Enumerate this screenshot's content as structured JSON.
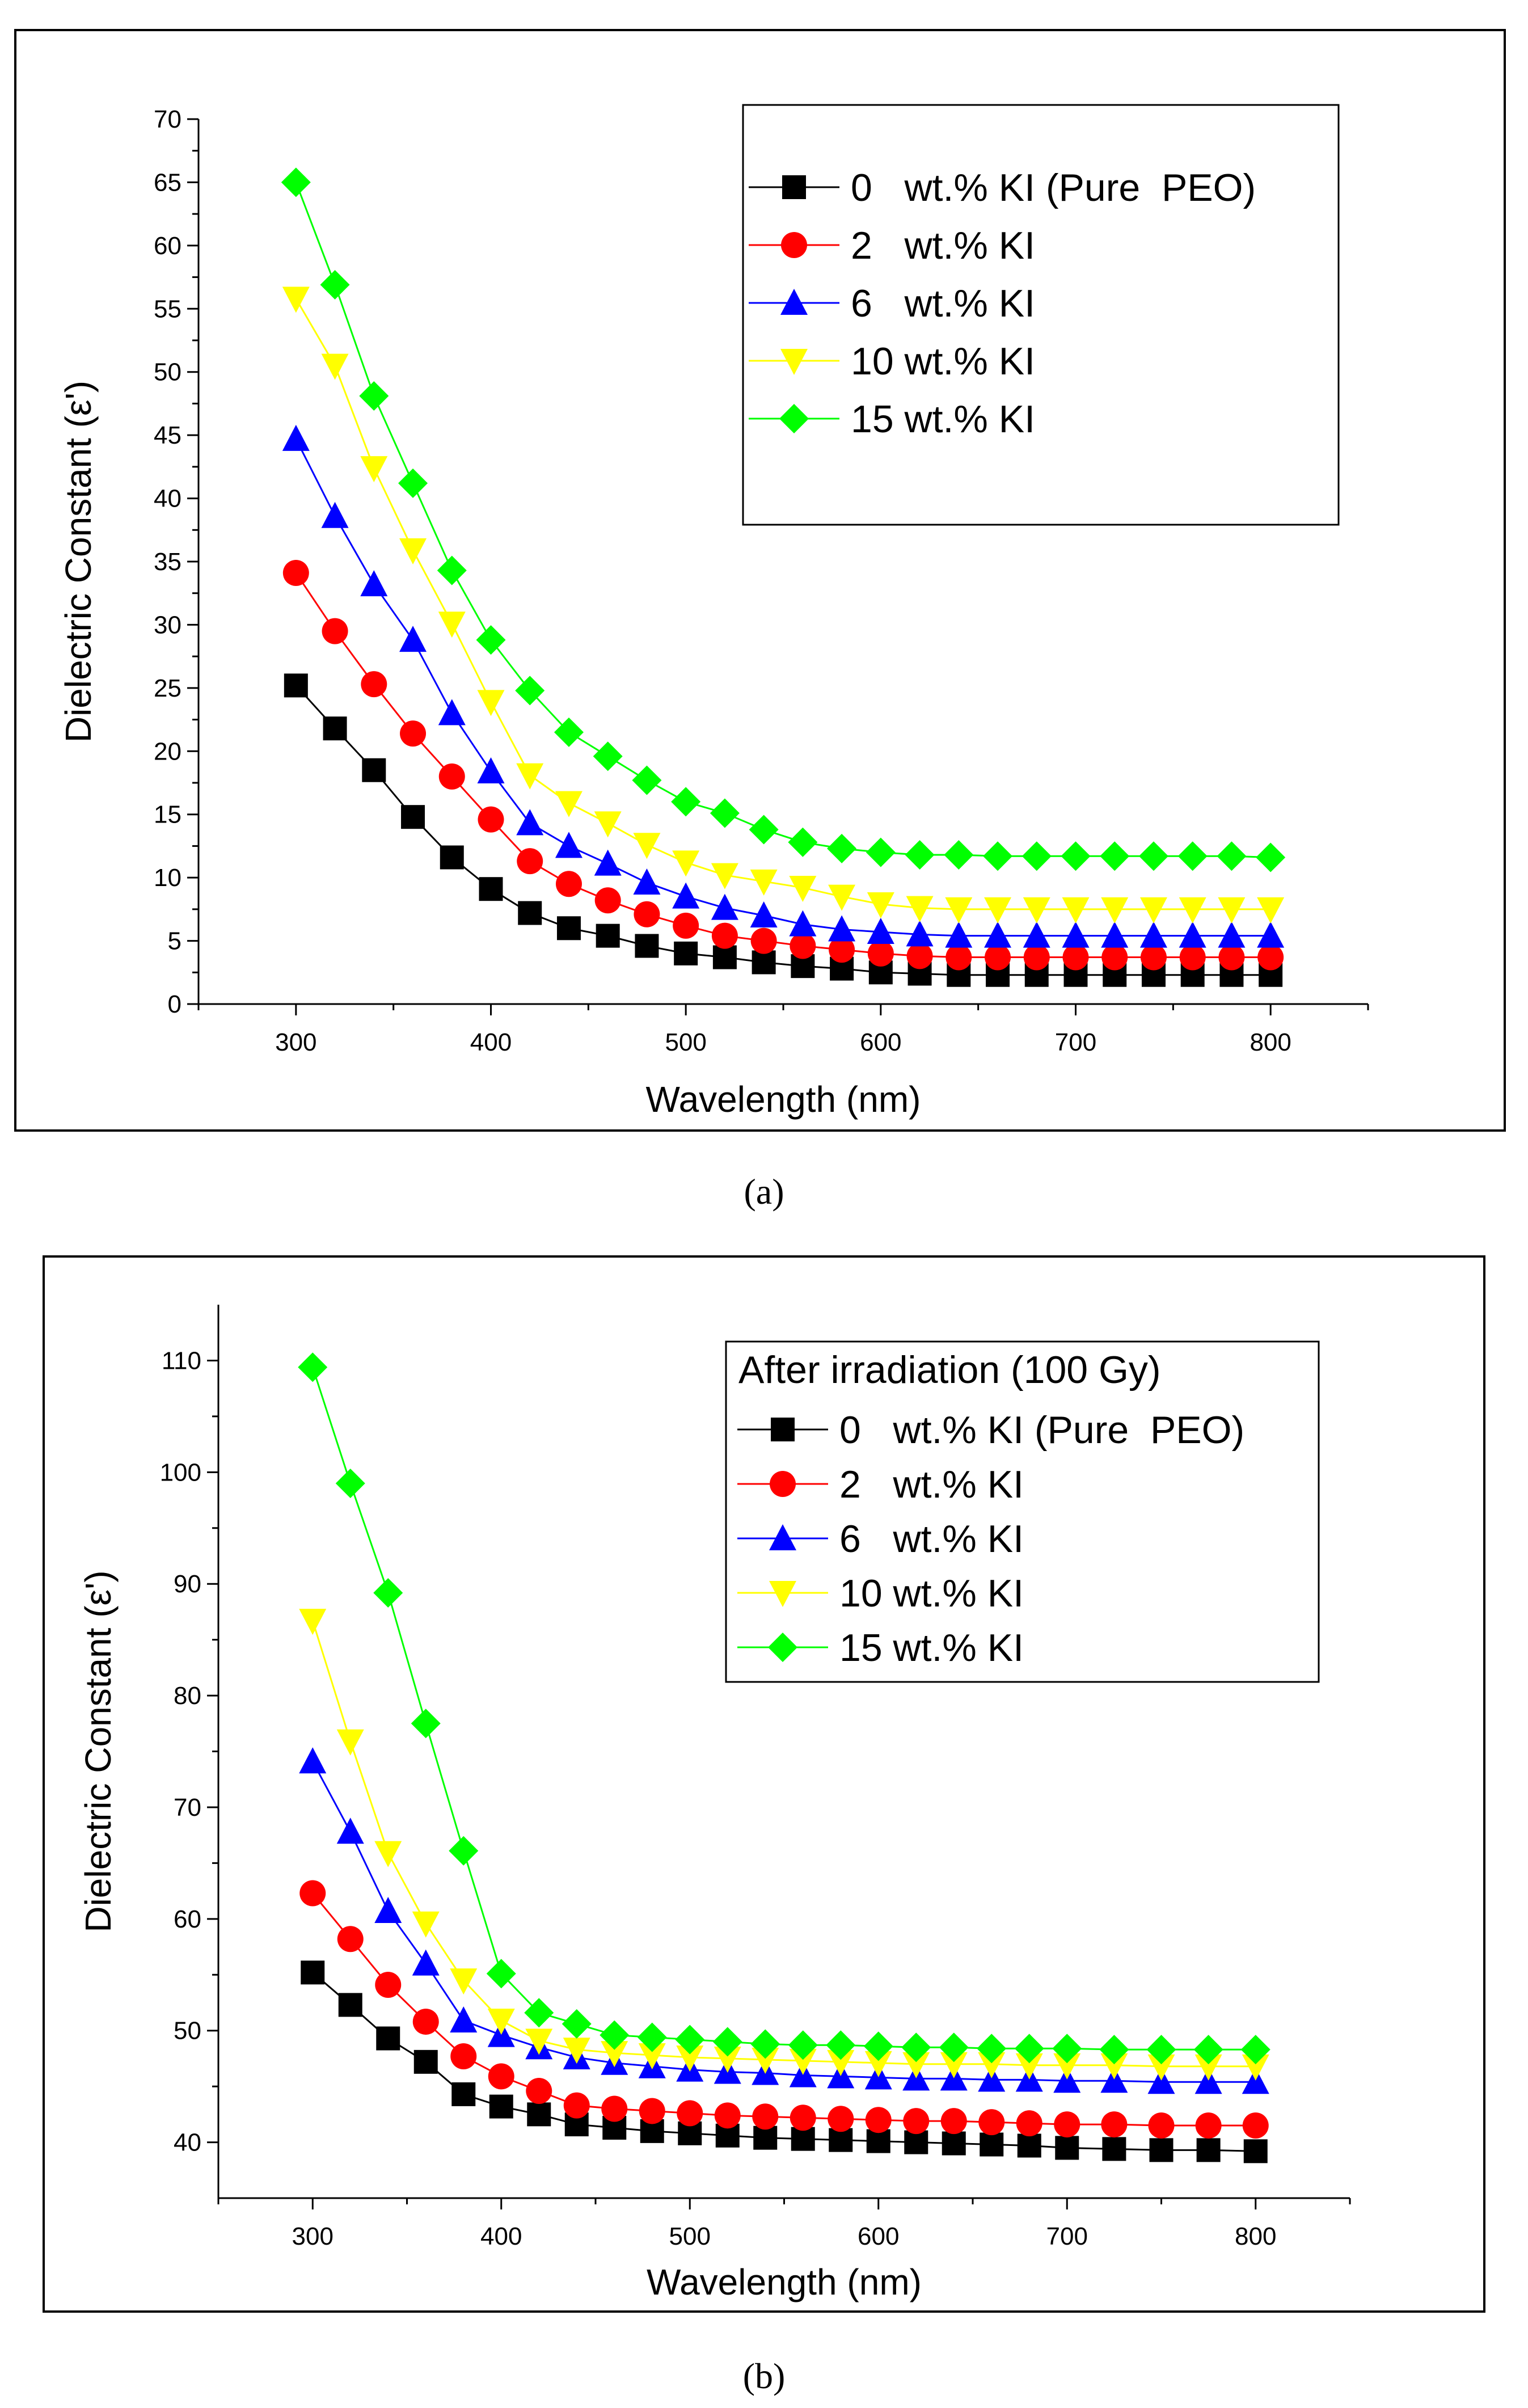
{
  "figure": {
    "panel_labels": [
      "(a)",
      "(b)"
    ]
  },
  "chart_data": [
    {
      "type": "line",
      "panel": "(a)",
      "title": "",
      "xlabel": "Wavelength (nm)",
      "ylabel": "Dielectric Constant (ε')",
      "xlim": [
        250,
        850
      ],
      "ylim": [
        0,
        70
      ],
      "xticks": [
        300,
        400,
        500,
        600,
        700,
        800
      ],
      "yticks": [
        0,
        5,
        10,
        15,
        20,
        25,
        30,
        35,
        40,
        45,
        50,
        55,
        60,
        65,
        70
      ],
      "legend_title": "",
      "legend_position": "top-right",
      "x": [
        300,
        320,
        340,
        360,
        380,
        400,
        420,
        440,
        460,
        480,
        500,
        520,
        540,
        560,
        580,
        600,
        620,
        640,
        660,
        680,
        700,
        720,
        740,
        760,
        780,
        800
      ],
      "series": [
        {
          "name": "0   wt.% KI (Pure  PEO)",
          "color": "#000000",
          "marker": "square",
          "values": [
            25.2,
            21.8,
            18.5,
            14.8,
            11.6,
            9.1,
            7.2,
            6.0,
            5.4,
            4.6,
            4.0,
            3.7,
            3.3,
            3.0,
            2.8,
            2.5,
            2.4,
            2.3,
            2.3,
            2.3,
            2.3,
            2.3,
            2.3,
            2.3,
            2.3,
            2.3
          ]
        },
        {
          "name": "2   wt.% KI",
          "color": "#ff0000",
          "marker": "circle",
          "values": [
            34.1,
            29.5,
            25.3,
            21.4,
            18.0,
            14.6,
            11.3,
            9.5,
            8.2,
            7.1,
            6.2,
            5.4,
            5.0,
            4.6,
            4.3,
            4.0,
            3.8,
            3.7,
            3.7,
            3.7,
            3.7,
            3.7,
            3.7,
            3.7,
            3.7,
            3.7
          ]
        },
        {
          "name": "6   wt.% KI",
          "color": "#0000ff",
          "marker": "triangle-up",
          "values": [
            44.7,
            38.6,
            33.2,
            28.8,
            23.0,
            18.4,
            14.3,
            12.5,
            11.1,
            9.6,
            8.5,
            7.6,
            7.0,
            6.3,
            5.9,
            5.7,
            5.5,
            5.4,
            5.4,
            5.4,
            5.4,
            5.4,
            5.4,
            5.4,
            5.4,
            5.4
          ]
        },
        {
          "name": "10 wt.% KI",
          "color": "#ffff00",
          "marker": "triangle-down",
          "values": [
            55.8,
            50.5,
            42.4,
            35.9,
            30.1,
            23.9,
            18.1,
            15.9,
            14.3,
            12.6,
            11.2,
            10.2,
            9.7,
            9.2,
            8.5,
            7.9,
            7.6,
            7.5,
            7.5,
            7.5,
            7.5,
            7.5,
            7.5,
            7.5,
            7.5,
            7.5
          ]
        },
        {
          "name": "15 wt.% KI",
          "color": "#00ff00",
          "marker": "diamond",
          "values": [
            65.0,
            56.9,
            48.1,
            41.2,
            34.3,
            28.8,
            24.8,
            21.5,
            19.6,
            17.7,
            16.0,
            15.1,
            13.8,
            12.8,
            12.3,
            12.0,
            11.8,
            11.8,
            11.7,
            11.7,
            11.7,
            11.7,
            11.7,
            11.7,
            11.7,
            11.6
          ]
        }
      ]
    },
    {
      "type": "line",
      "panel": "(b)",
      "title": "",
      "xlabel": "Wavelength (nm)",
      "ylabel": "Dielectric Constant (ε')",
      "xlim": [
        250,
        850
      ],
      "ylim": [
        35,
        115
      ],
      "xticks": [
        300,
        400,
        500,
        600,
        700,
        800
      ],
      "yticks": [
        40,
        50,
        60,
        70,
        80,
        90,
        100,
        110
      ],
      "legend_title": "After  irradiation (100 Gy)",
      "legend_position": "top-right",
      "x": [
        300,
        320,
        340,
        360,
        380,
        400,
        420,
        440,
        460,
        480,
        500,
        520,
        540,
        560,
        580,
        600,
        620,
        640,
        660,
        680,
        700,
        725,
        750,
        775,
        800
      ],
      "series": [
        {
          "name": "0   wt.% KI (Pure  PEO)",
          "color": "#000000",
          "marker": "square",
          "values": [
            55.2,
            52.3,
            49.3,
            47.2,
            44.3,
            43.2,
            42.5,
            41.6,
            41.3,
            41.0,
            40.8,
            40.6,
            40.4,
            40.3,
            40.2,
            40.1,
            40.0,
            39.9,
            39.8,
            39.7,
            39.5,
            39.4,
            39.3,
            39.3,
            39.2
          ]
        },
        {
          "name": "2   wt.% KI",
          "color": "#ff0000",
          "marker": "circle",
          "values": [
            62.3,
            58.2,
            54.1,
            50.8,
            47.7,
            45.9,
            44.6,
            43.3,
            43.0,
            42.8,
            42.6,
            42.4,
            42.3,
            42.2,
            42.1,
            42.0,
            41.9,
            41.9,
            41.8,
            41.7,
            41.6,
            41.6,
            41.5,
            41.5,
            41.5
          ]
        },
        {
          "name": "6   wt.% KI",
          "color": "#0000ff",
          "marker": "triangle-up",
          "values": [
            74.1,
            67.8,
            60.7,
            56.0,
            50.9,
            49.6,
            48.5,
            47.6,
            47.1,
            46.8,
            46.5,
            46.3,
            46.2,
            46.0,
            45.9,
            45.8,
            45.7,
            45.7,
            45.6,
            45.6,
            45.5,
            45.5,
            45.4,
            45.4,
            45.4
          ]
        },
        {
          "name": "10 wt.% KI",
          "color": "#ffff00",
          "marker": "triangle-down",
          "values": [
            86.7,
            75.9,
            65.9,
            59.6,
            54.5,
            50.9,
            49.1,
            48.3,
            48.0,
            47.8,
            47.6,
            47.5,
            47.4,
            47.3,
            47.2,
            47.1,
            47.0,
            47.0,
            47.0,
            46.9,
            46.9,
            46.9,
            46.8,
            46.8,
            46.8
          ]
        },
        {
          "name": "15 wt.% KI",
          "color": "#00ff00",
          "marker": "diamond",
          "values": [
            109.4,
            99.0,
            89.2,
            77.5,
            66.1,
            55.1,
            51.6,
            50.6,
            49.6,
            49.4,
            49.2,
            49.0,
            48.8,
            48.7,
            48.7,
            48.6,
            48.5,
            48.5,
            48.4,
            48.4,
            48.4,
            48.3,
            48.3,
            48.3,
            48.3
          ]
        }
      ]
    }
  ]
}
